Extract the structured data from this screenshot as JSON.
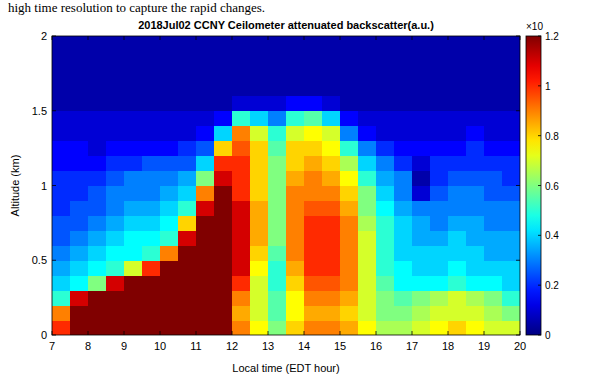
{
  "chart_data": {
    "type": "heatmap",
    "annotations": [
      "high time resolution to capture the rapid changes."
    ],
    "title": "2018Jul02 CCNY Ceilometer attenuated backscatter(a.u.)",
    "x_label": "Local time (EDT hour)",
    "y_label": "Altitude (km)",
    "xlim": [
      7,
      20
    ],
    "xticks": [
      7,
      8,
      9,
      10,
      11,
      12,
      13,
      14,
      15,
      16,
      17,
      18,
      19,
      20
    ],
    "ylim": [
      0,
      2
    ],
    "yticks": [
      0,
      0.5,
      1,
      1.5,
      2
    ],
    "x": [
      7,
      7.5,
      8,
      8.5,
      9,
      9.5,
      10,
      10.5,
      11,
      11.5,
      12,
      12.5,
      13,
      13.5,
      14,
      14.5,
      15,
      15.5,
      16,
      16.5,
      17,
      17.5,
      18,
      18.5,
      19,
      19.5
    ],
    "y": [
      0,
      0.1,
      0.2,
      0.3,
      0.4,
      0.5,
      0.6,
      0.7,
      0.8,
      0.9,
      1,
      1.1,
      1.2,
      1.3,
      1.4,
      1.5,
      1.6,
      1.7,
      1.8,
      1.9
    ],
    "cells": [
      [
        1.0,
        0.9,
        0.5,
        0.4,
        0.35,
        0.3,
        0.25,
        0.25,
        0.2,
        0.2,
        0.2,
        0.15,
        0.15,
        0.1,
        0.1,
        0.05,
        0.05,
        0.05,
        0.05,
        0.05
      ],
      [
        1.2,
        1.2,
        1.1,
        0.45,
        0.4,
        0.35,
        0.3,
        0.25,
        0.25,
        0.2,
        0.2,
        0.15,
        0.15,
        0.1,
        0.1,
        0.05,
        0.05,
        0.05,
        0.05,
        0.05
      ],
      [
        1.2,
        1.2,
        1.2,
        0.6,
        0.45,
        0.4,
        0.35,
        0.3,
        0.25,
        0.25,
        0.2,
        0.15,
        0.1,
        0.1,
        0.1,
        0.05,
        0.05,
        0.05,
        0.05,
        0.05
      ],
      [
        1.2,
        1.2,
        1.2,
        1.1,
        0.5,
        0.45,
        0.4,
        0.35,
        0.3,
        0.3,
        0.25,
        0.2,
        0.15,
        0.1,
        0.1,
        0.05,
        0.05,
        0.05,
        0.05,
        0.05
      ],
      [
        1.2,
        1.2,
        1.2,
        1.2,
        0.7,
        0.45,
        0.45,
        0.4,
        0.35,
        0.3,
        0.3,
        0.2,
        0.15,
        0.1,
        0.1,
        0.05,
        0.05,
        0.05,
        0.05,
        0.05
      ],
      [
        1.2,
        1.2,
        1.2,
        1.2,
        1.0,
        0.5,
        0.45,
        0.4,
        0.35,
        0.3,
        0.3,
        0.25,
        0.15,
        0.1,
        0.1,
        0.05,
        0.05,
        0.05,
        0.05,
        0.05
      ],
      [
        1.2,
        1.2,
        1.2,
        1.2,
        1.2,
        0.9,
        0.5,
        0.45,
        0.4,
        0.35,
        0.3,
        0.25,
        0.15,
        0.1,
        0.1,
        0.05,
        0.05,
        0.05,
        0.05,
        0.05
      ],
      [
        1.2,
        1.2,
        1.2,
        1.2,
        1.2,
        1.2,
        1.1,
        0.8,
        0.5,
        0.4,
        0.35,
        0.25,
        0.2,
        0.1,
        0.1,
        0.05,
        0.05,
        0.05,
        0.05,
        0.05
      ],
      [
        1.2,
        1.2,
        1.2,
        1.2,
        1.2,
        1.2,
        1.2,
        1.2,
        1.1,
        0.9,
        0.6,
        0.4,
        0.25,
        0.15,
        0.1,
        0.05,
        0.05,
        0.05,
        0.05,
        0.05
      ],
      [
        1.2,
        1.2,
        1.2,
        1.2,
        1.2,
        1.2,
        1.2,
        1.2,
        1.2,
        1.2,
        1.1,
        1.0,
        0.8,
        0.4,
        0.15,
        0.05,
        0.05,
        0.05,
        0.05,
        0.05
      ],
      [
        0.9,
        0.85,
        0.9,
        1.0,
        1.1,
        1.1,
        1.1,
        1.1,
        1.1,
        1.0,
        1.0,
        1.0,
        0.95,
        0.9,
        0.5,
        0.1,
        0.05,
        0.05,
        0.05,
        0.05
      ],
      [
        0.75,
        0.7,
        0.7,
        0.7,
        0.75,
        0.8,
        0.85,
        0.85,
        0.85,
        0.8,
        0.8,
        0.8,
        0.8,
        0.7,
        0.4,
        0.1,
        0.05,
        0.05,
        0.05,
        0.05
      ],
      [
        0.6,
        0.55,
        0.55,
        0.5,
        0.5,
        0.55,
        0.6,
        0.6,
        0.6,
        0.6,
        0.6,
        0.6,
        0.55,
        0.5,
        0.3,
        0.1,
        0.05,
        0.05,
        0.05,
        0.05
      ],
      [
        0.8,
        0.75,
        0.75,
        0.8,
        0.85,
        0.9,
        0.9,
        0.9,
        0.9,
        0.9,
        0.85,
        0.8,
        0.8,
        0.7,
        0.5,
        0.15,
        0.05,
        0.05,
        0.05,
        0.05
      ],
      [
        0.9,
        0.85,
        0.9,
        0.95,
        1.0,
        1.0,
        1.0,
        1.0,
        0.95,
        0.9,
        0.9,
        0.85,
        0.8,
        0.75,
        0.55,
        0.15,
        0.05,
        0.05,
        0.05,
        0.05
      ],
      [
        0.9,
        0.85,
        0.9,
        0.95,
        1.0,
        1.0,
        1.0,
        1.0,
        0.95,
        0.9,
        0.85,
        0.8,
        0.75,
        0.7,
        0.4,
        0.1,
        0.05,
        0.05,
        0.05,
        0.05
      ],
      [
        0.85,
        0.8,
        0.85,
        0.9,
        0.9,
        0.9,
        0.9,
        0.9,
        0.85,
        0.8,
        0.75,
        0.65,
        0.5,
        0.3,
        0.15,
        0.05,
        0.05,
        0.05,
        0.05,
        0.05
      ],
      [
        0.75,
        0.7,
        0.7,
        0.7,
        0.7,
        0.7,
        0.7,
        0.65,
        0.6,
        0.6,
        0.5,
        0.4,
        0.3,
        0.15,
        0.1,
        0.05,
        0.05,
        0.05,
        0.05,
        0.05
      ],
      [
        0.65,
        0.6,
        0.6,
        0.55,
        0.5,
        0.5,
        0.5,
        0.5,
        0.45,
        0.4,
        0.35,
        0.3,
        0.2,
        0.1,
        0.1,
        0.05,
        0.05,
        0.05,
        0.05,
        0.05
      ],
      [
        0.65,
        0.6,
        0.55,
        0.45,
        0.45,
        0.4,
        0.4,
        0.4,
        0.35,
        0.3,
        0.3,
        0.2,
        0.15,
        0.1,
        0.1,
        0.05,
        0.05,
        0.05,
        0.05,
        0.05
      ],
      [
        0.7,
        0.65,
        0.6,
        0.45,
        0.4,
        0.4,
        0.35,
        0.35,
        0.3,
        0.1,
        0.05,
        0.1,
        0.15,
        0.1,
        0.1,
        0.05,
        0.05,
        0.05,
        0.05,
        0.05
      ],
      [
        0.75,
        0.7,
        0.65,
        0.45,
        0.4,
        0.4,
        0.35,
        0.3,
        0.3,
        0.25,
        0.2,
        0.2,
        0.15,
        0.1,
        0.1,
        0.05,
        0.05,
        0.05,
        0.05,
        0.05
      ],
      [
        0.8,
        0.7,
        0.7,
        0.5,
        0.45,
        0.4,
        0.4,
        0.35,
        0.3,
        0.3,
        0.25,
        0.2,
        0.15,
        0.1,
        0.1,
        0.05,
        0.05,
        0.05,
        0.05,
        0.05
      ],
      [
        0.75,
        0.7,
        0.65,
        0.45,
        0.4,
        0.4,
        0.35,
        0.35,
        0.3,
        0.3,
        0.25,
        0.2,
        0.2,
        0.15,
        0.1,
        0.05,
        0.05,
        0.05,
        0.05,
        0.05
      ],
      [
        0.7,
        0.65,
        0.6,
        0.45,
        0.4,
        0.35,
        0.35,
        0.3,
        0.3,
        0.25,
        0.25,
        0.2,
        0.15,
        0.1,
        0.1,
        0.05,
        0.05,
        0.05,
        0.05,
        0.05
      ],
      [
        0.7,
        0.6,
        0.5,
        0.4,
        0.4,
        0.35,
        0.35,
        0.3,
        0.3,
        0.25,
        0.2,
        0.2,
        0.15,
        0.1,
        0.1,
        0.05,
        0.05,
        0.05,
        0.05,
        0.05
      ]
    ],
    "colorbar_lim": [
      0,
      1.2
    ],
    "colorbar_ticks": [
      0,
      0.2,
      0.4,
      0.6,
      0.8,
      1,
      1.2
    ],
    "colorbar_label": "×10"
  }
}
